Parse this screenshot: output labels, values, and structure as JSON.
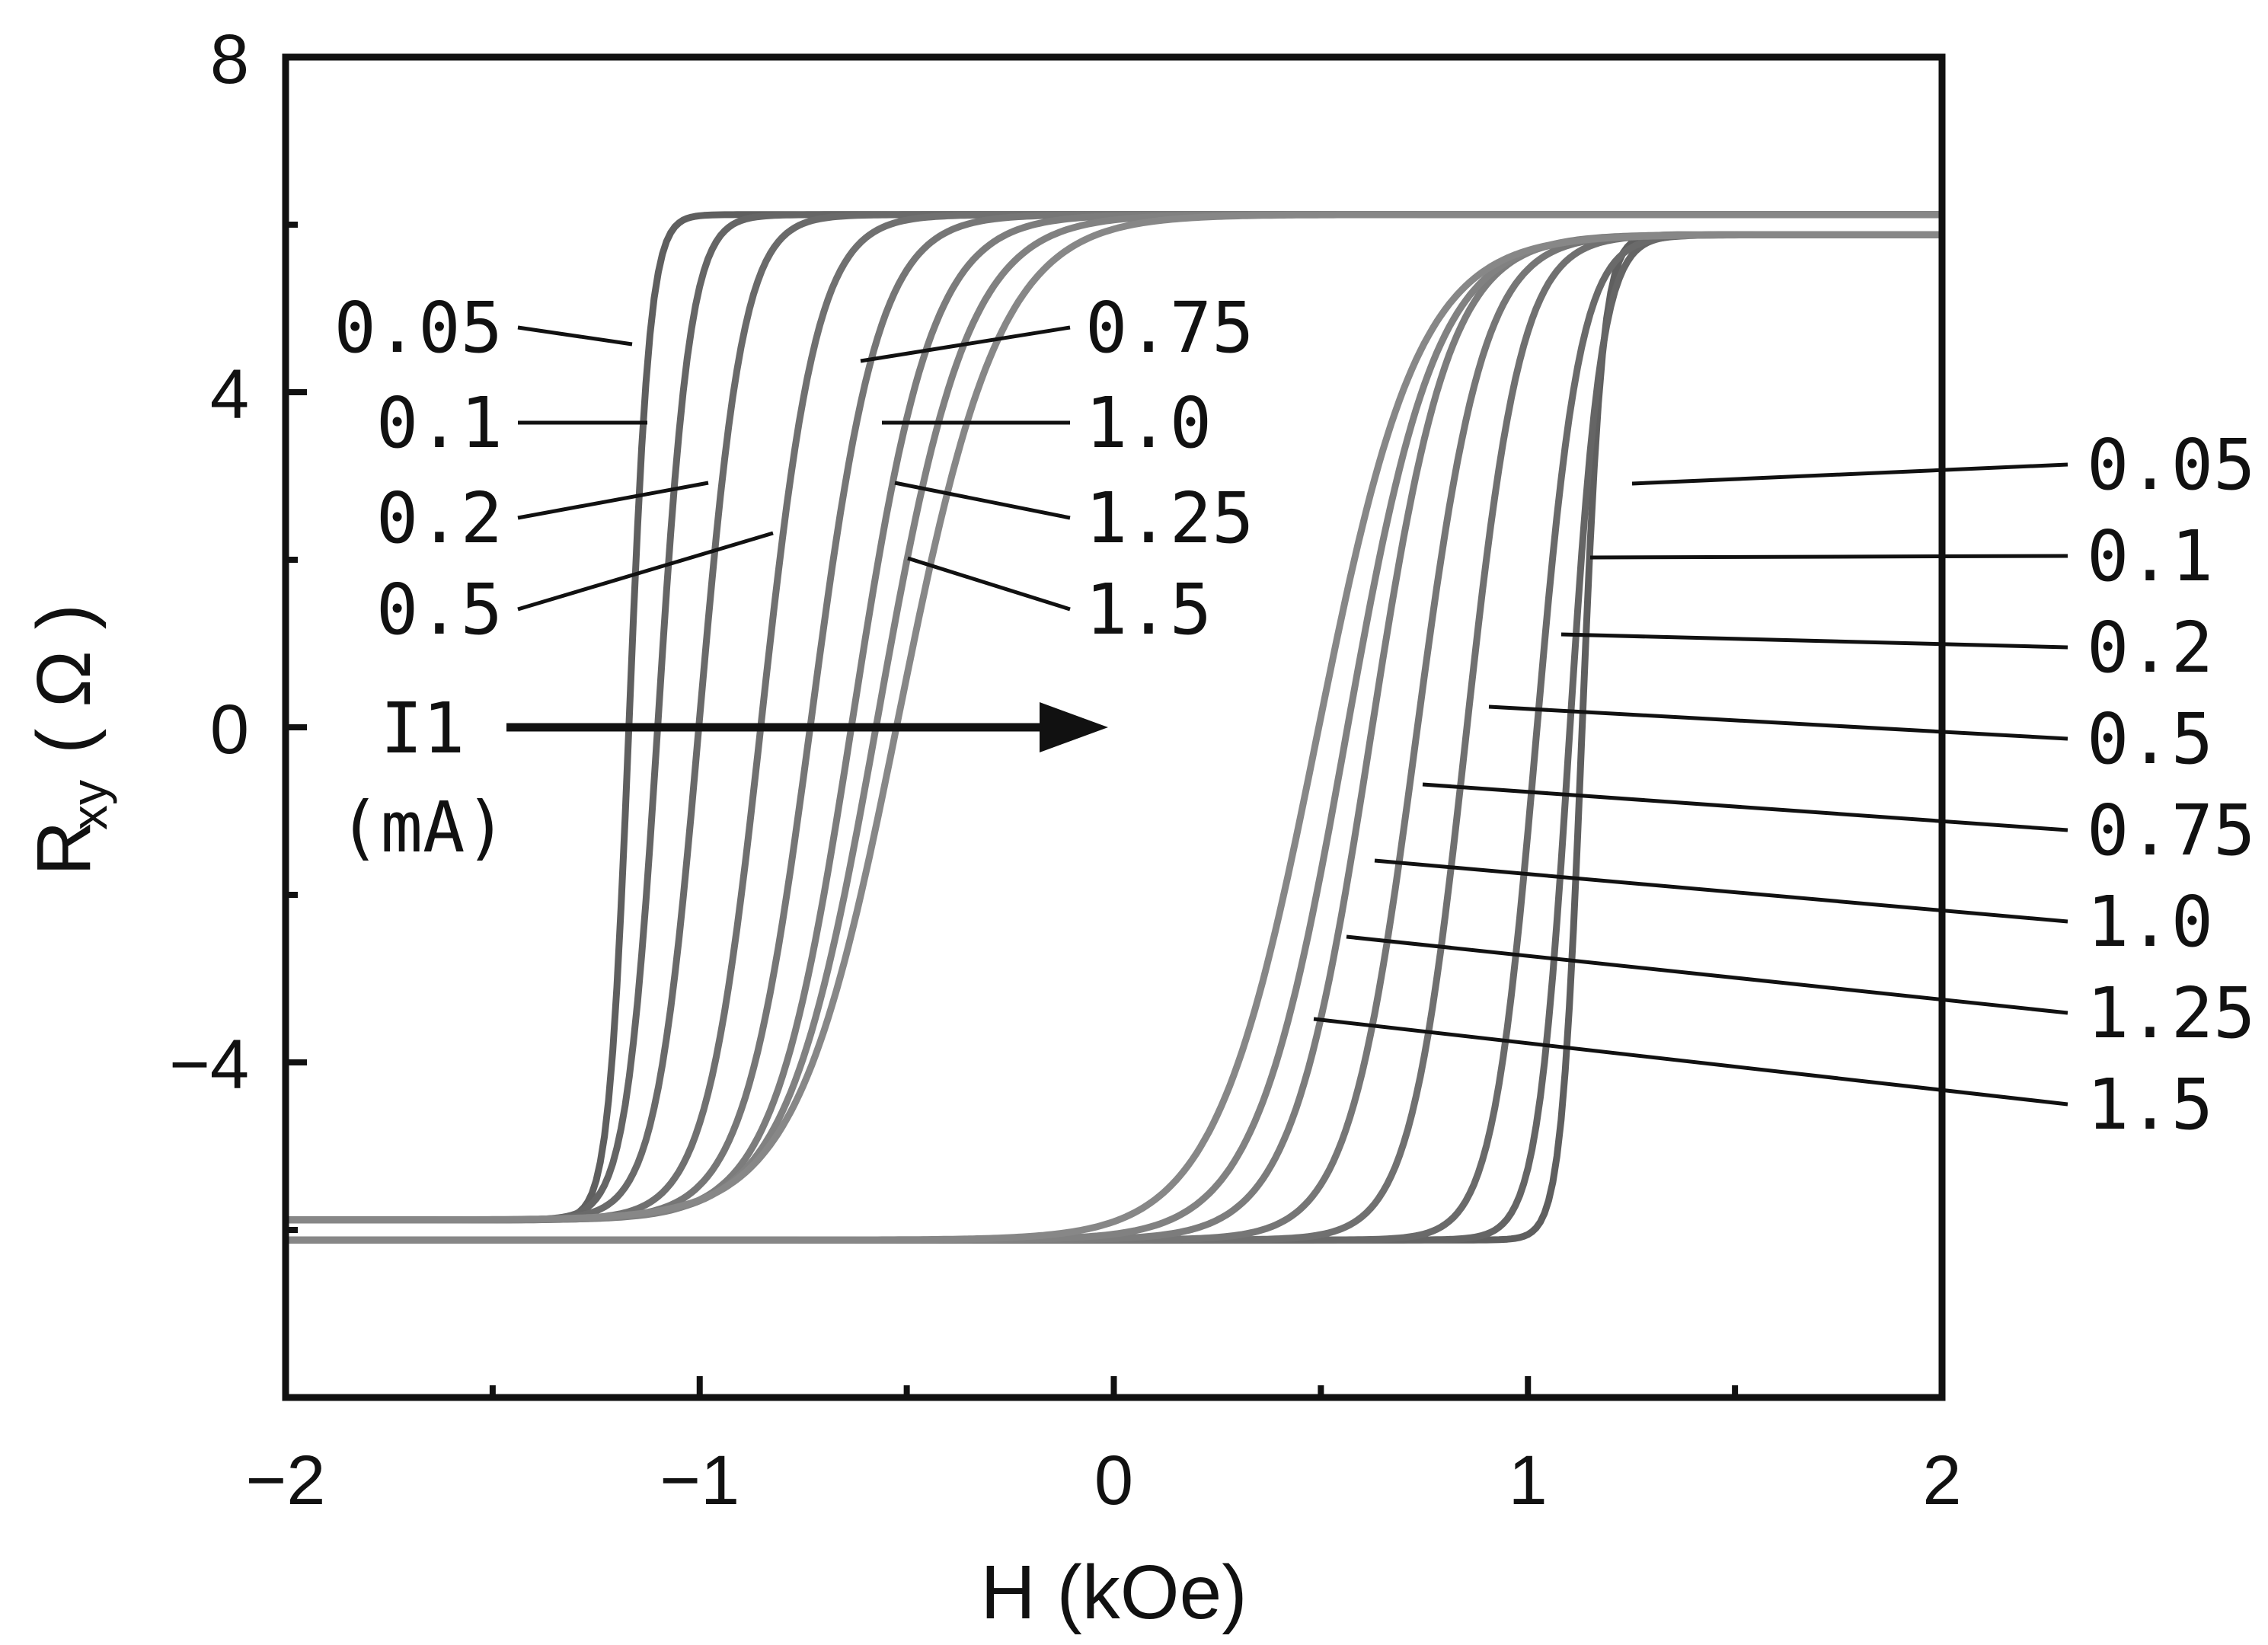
{
  "chart_data": {
    "type": "line",
    "xlabel": "H (kOe)",
    "ylabel_main": "R",
    "ylabel_sub": "xy",
    "ylabel_unit": "( Ω )",
    "xlim": [
      -2,
      2
    ],
    "ylim": [
      -8,
      8
    ],
    "x_ticks": [
      -2,
      -1,
      0,
      1,
      2
    ],
    "x_tick_labels": [
      "−2",
      "−1",
      "0",
      "1",
      "2"
    ],
    "y_ticks": [
      -4,
      0,
      4,
      8
    ],
    "y_tick_labels": [
      "−4",
      "0",
      "4",
      "8"
    ],
    "grid": false,
    "line_color": "#6b6b6b",
    "saturation_high": 6.0,
    "saturation_low": -6.0,
    "series": [
      {
        "name": "0.05",
        "down_center": -1.17,
        "up_center": 1.13
      },
      {
        "name": "0.1",
        "down_center": -1.1,
        "up_center": 1.1
      },
      {
        "name": "0.2",
        "down_center": -1.0,
        "up_center": 1.02
      },
      {
        "name": "0.5",
        "down_center": -0.85,
        "up_center": 0.85
      },
      {
        "name": "0.75",
        "down_center": -0.73,
        "up_center": 0.73
      },
      {
        "name": "1.0",
        "down_center": -0.63,
        "up_center": 0.62
      },
      {
        "name": "1.25",
        "down_center": -0.57,
        "up_center": 0.56
      },
      {
        "name": "1.5",
        "down_center": -0.52,
        "up_center": 0.49
      }
    ],
    "left_labels": {
      "group1": [
        "0.05",
        "0.1",
        "0.2",
        "0.5"
      ],
      "group2": [
        "0.75",
        "1.0",
        "1.25",
        "1.5"
      ]
    },
    "right_labels": [
      "0.05",
      "0.1",
      "0.2",
      "0.5",
      "0.75",
      "1.0",
      "1.25",
      "1.5"
    ],
    "annotation_line1": "I1",
    "annotation_line2": "(mA)"
  }
}
